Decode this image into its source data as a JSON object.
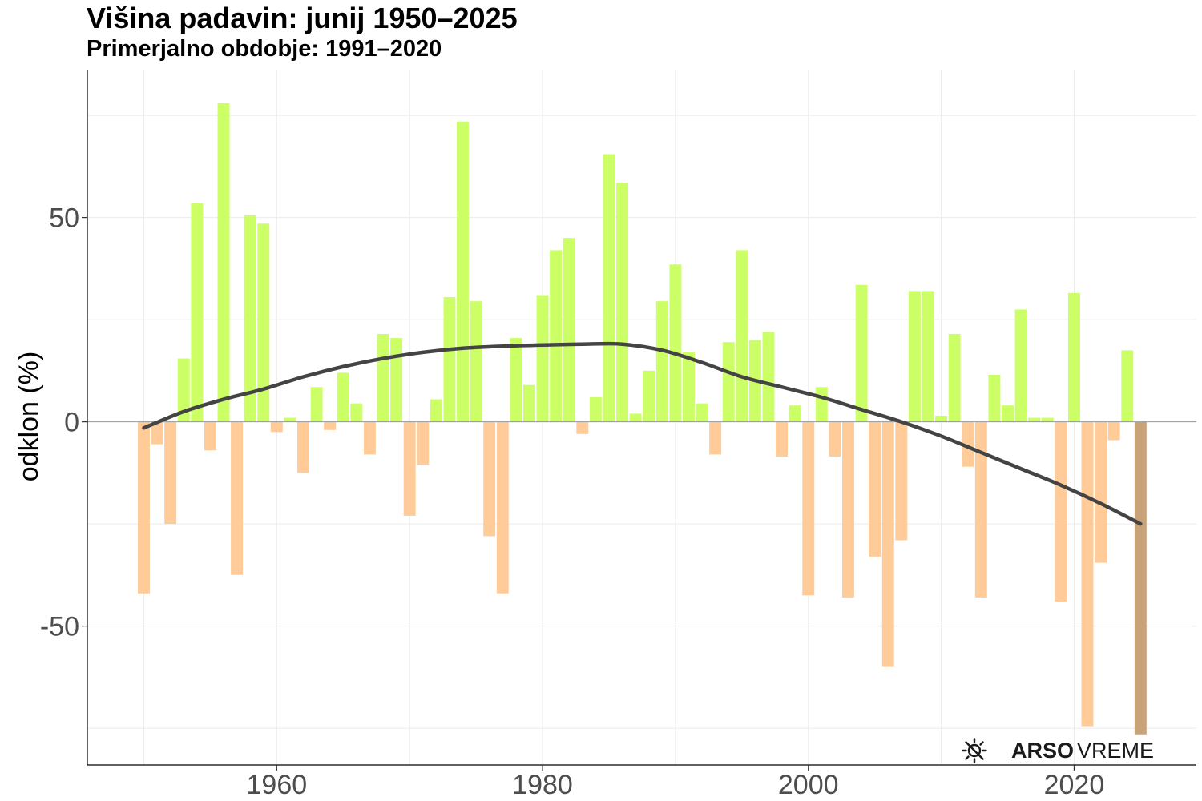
{
  "chart_data": {
    "type": "bar",
    "title": "Višina padavin: junij 1950–2025",
    "subtitle": "Primerjalno obdobje: 1991–2020",
    "ylabel": "odklon (%)",
    "xlabel": "",
    "xlim": [
      1945.8,
      1929.2
    ],
    "ylim": [
      -84,
      86
    ],
    "x_ticks": [
      1960,
      1980,
      2000,
      2020
    ],
    "y_ticks": [
      -50,
      0,
      50
    ],
    "grid": true,
    "legend": "none",
    "colors": {
      "positive": "#ccff66",
      "negative": "#ffcc99",
      "current": "#c8a37a",
      "trend": "#444444"
    },
    "x": [
      1950,
      1951,
      1952,
      1953,
      1954,
      1955,
      1956,
      1957,
      1958,
      1959,
      1960,
      1961,
      1962,
      1963,
      1964,
      1965,
      1966,
      1967,
      1968,
      1969,
      1970,
      1971,
      1972,
      1973,
      1974,
      1975,
      1976,
      1977,
      1978,
      1979,
      1980,
      1981,
      1982,
      1983,
      1984,
      1985,
      1986,
      1987,
      1988,
      1989,
      1990,
      1991,
      1992,
      1993,
      1994,
      1995,
      1996,
      1997,
      1998,
      1999,
      2000,
      2001,
      2002,
      2003,
      2004,
      2005,
      2006,
      2007,
      2008,
      2009,
      2010,
      2011,
      2012,
      2013,
      2014,
      2015,
      2016,
      2017,
      2018,
      2019,
      2020,
      2021,
      2022,
      2023,
      2024,
      2025
    ],
    "values": [
      -42,
      -5.5,
      -25,
      15.5,
      53.5,
      -7,
      78,
      -37.5,
      50.5,
      48.5,
      -2.5,
      1,
      -12.5,
      8.5,
      -2,
      12,
      4.5,
      -8,
      21.5,
      20.5,
      -23,
      -10.5,
      5.5,
      30.5,
      73.5,
      29.5,
      -28,
      -42,
      20.5,
      9,
      31,
      42,
      45,
      -3,
      6,
      65.5,
      58.5,
      2,
      12.5,
      29.5,
      38.5,
      17,
      4.5,
      -8,
      19.5,
      42,
      20,
      22,
      -8.5,
      4,
      -42.5,
      8.5,
      -8.5,
      -43,
      33.5,
      -33,
      -60,
      -29,
      32,
      32,
      1.5,
      21.5,
      -11,
      -43,
      11.5,
      4,
      27.5,
      1,
      1,
      -44,
      31.5,
      -74.5,
      -34.5,
      -4.5,
      17.5,
      -76.5
    ],
    "trend": {
      "x": [
        1950,
        1953,
        1956,
        1959,
        1962,
        1965,
        1968,
        1971,
        1974,
        1977,
        1980,
        1983,
        1986,
        1989,
        1992,
        1995,
        1998,
        2001,
        2004,
        2007,
        2010,
        2013,
        2016,
        2019,
        2022,
        2025
      ],
      "values": [
        -1.5,
        2.5,
        5.5,
        8,
        11,
        13.5,
        15.5,
        17,
        18,
        18.5,
        18.8,
        19,
        19,
        17.5,
        14.5,
        11,
        8.5,
        6,
        3,
        0,
        -3.5,
        -7.5,
        -11.5,
        -15.5,
        -20,
        -25
      ]
    }
  },
  "branding": {
    "logo_bold": "ARSO",
    "logo_light": "VREME",
    "icon": "weather-sun-icon"
  }
}
